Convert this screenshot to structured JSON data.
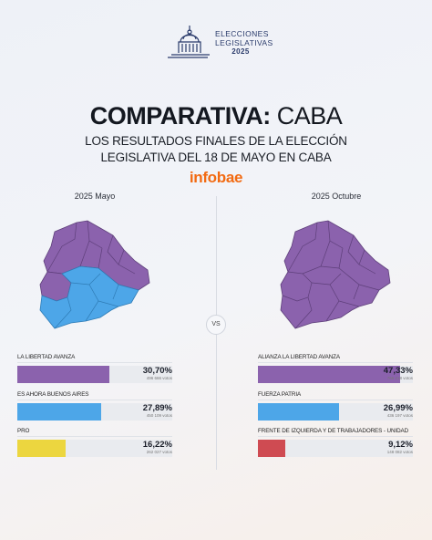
{
  "header": {
    "logo_line1": "ELECCIONES",
    "logo_line2": "LEGISLATIVAS",
    "logo_year": "2025"
  },
  "title_bold": "COMPARATIVA:",
  "title_rest": "CABA",
  "subtitle_line1": "Los resultados finales de la elección",
  "subtitle_line2": "legislativa del 18 de mayo en CABA",
  "brand": "infobae",
  "vs_label": "VS",
  "colors": {
    "violet": "#8b62ad",
    "blue": "#4da6e8",
    "yellow": "#ecd63f",
    "red": "#cf4b52"
  },
  "left": {
    "period": "2025 Mayo",
    "results": [
      {
        "name": "LA LIBERTAD AVANZA",
        "pct": "30,70%",
        "votes": "496 666 votos",
        "share": 0.307,
        "color": "#8b62ad"
      },
      {
        "name": "ES AHORA BUENOS AIRES",
        "pct": "27,89%",
        "votes": "450 109 votos",
        "share": 0.2789,
        "color": "#4da6e8"
      },
      {
        "name": "PRO",
        "pct": "16,22%",
        "votes": "262 027 votos",
        "share": 0.1622,
        "color": "#ecd63f"
      }
    ]
  },
  "right": {
    "period": "2025 Octubre",
    "results": [
      {
        "name": "ALIANZA LA LIBERTAD AVANZA",
        "pct": "47,33%",
        "votes": "766 218 votos",
        "share": 0.4733,
        "color": "#8b62ad"
      },
      {
        "name": "FUERZA PATRIA",
        "pct": "26,99%",
        "votes": "436 197 votos",
        "share": 0.2699,
        "color": "#4da6e8"
      },
      {
        "name": "FRENTE DE IZQUIERDA Y DE TRABAJADORES - UNIDAD",
        "pct": "9,12%",
        "votes": "148 082 votos",
        "share": 0.0912,
        "color": "#cf4b52"
      }
    ]
  }
}
